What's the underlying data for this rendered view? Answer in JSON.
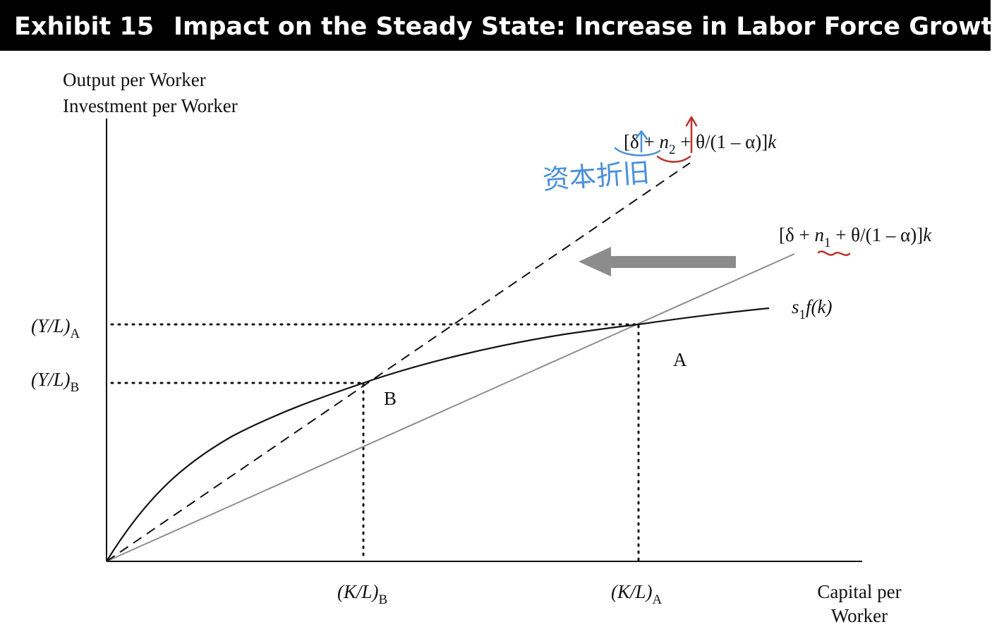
{
  "header": {
    "exhibit": "Exhibit 15",
    "title": "Impact on the Steady State: Increase in Labor Force Growth"
  },
  "axes": {
    "y_label_line1": "Output per Worker",
    "y_label_line2": "Investment per Worker",
    "x_label_line1": "Capital per",
    "x_label_line2": "Worker"
  },
  "ticks": {
    "yA": {
      "base": "(Y/L)",
      "sub": "A"
    },
    "yB": {
      "base": "(Y/L)",
      "sub": "B"
    },
    "xB": {
      "base": "(K/L)",
      "sub": "B"
    },
    "xA": {
      "base": "(K/L)",
      "sub": "A"
    }
  },
  "curves": {
    "savings": {
      "s": "s",
      "sub": "1",
      "rest": "f(k)"
    },
    "line_n2": {
      "pre": "[δ + ",
      "n": "n",
      "sub": "2",
      "post": " + θ/(1 – α)]",
      "k": "k"
    },
    "line_n1": {
      "pre": "[δ + ",
      "n": "n",
      "sub": "1",
      "post": " + θ/(1 – α)]",
      "k": "k"
    }
  },
  "points": {
    "a": "A",
    "b": "B"
  },
  "annotation": {
    "handwritten": "资本折旧"
  },
  "colors": {
    "curve": "#111111",
    "line_n1": "#8e8e8e",
    "arrow": "#8c8c8c",
    "handwriting_blue": "#4a90d9",
    "handwriting_red": "#b8342c"
  }
}
